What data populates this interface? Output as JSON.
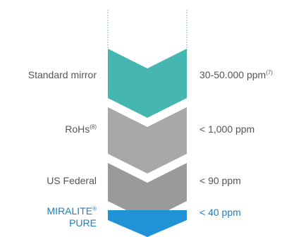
{
  "colors": {
    "teal": "#45b6b0",
    "light_gray": "#a8a8aa",
    "mid_gray": "#9a9a9c",
    "blue": "#1f93d6",
    "dotted_line": "#5fb7b5",
    "text": "#555555",
    "accent_text": "#1d7fc3"
  },
  "levels": [
    {
      "left_label": "Standard mirror",
      "right_value": "30-50.000 ppm",
      "right_sup": "(7)",
      "color": "#45b6b0"
    },
    {
      "left_label": "RoHs",
      "left_sup": "(8)",
      "right_value": "< 1,000 ppm",
      "color": "#a8a8aa"
    },
    {
      "left_label": "US Federal",
      "right_value": "< 90 ppm",
      "color": "#9a9a9c"
    },
    {
      "left_label": "MIRALITE",
      "left_label_sup": "®",
      "left_label_line2": "PURE",
      "right_value": "< 40 ppm",
      "color": "#1f93d6"
    }
  ]
}
